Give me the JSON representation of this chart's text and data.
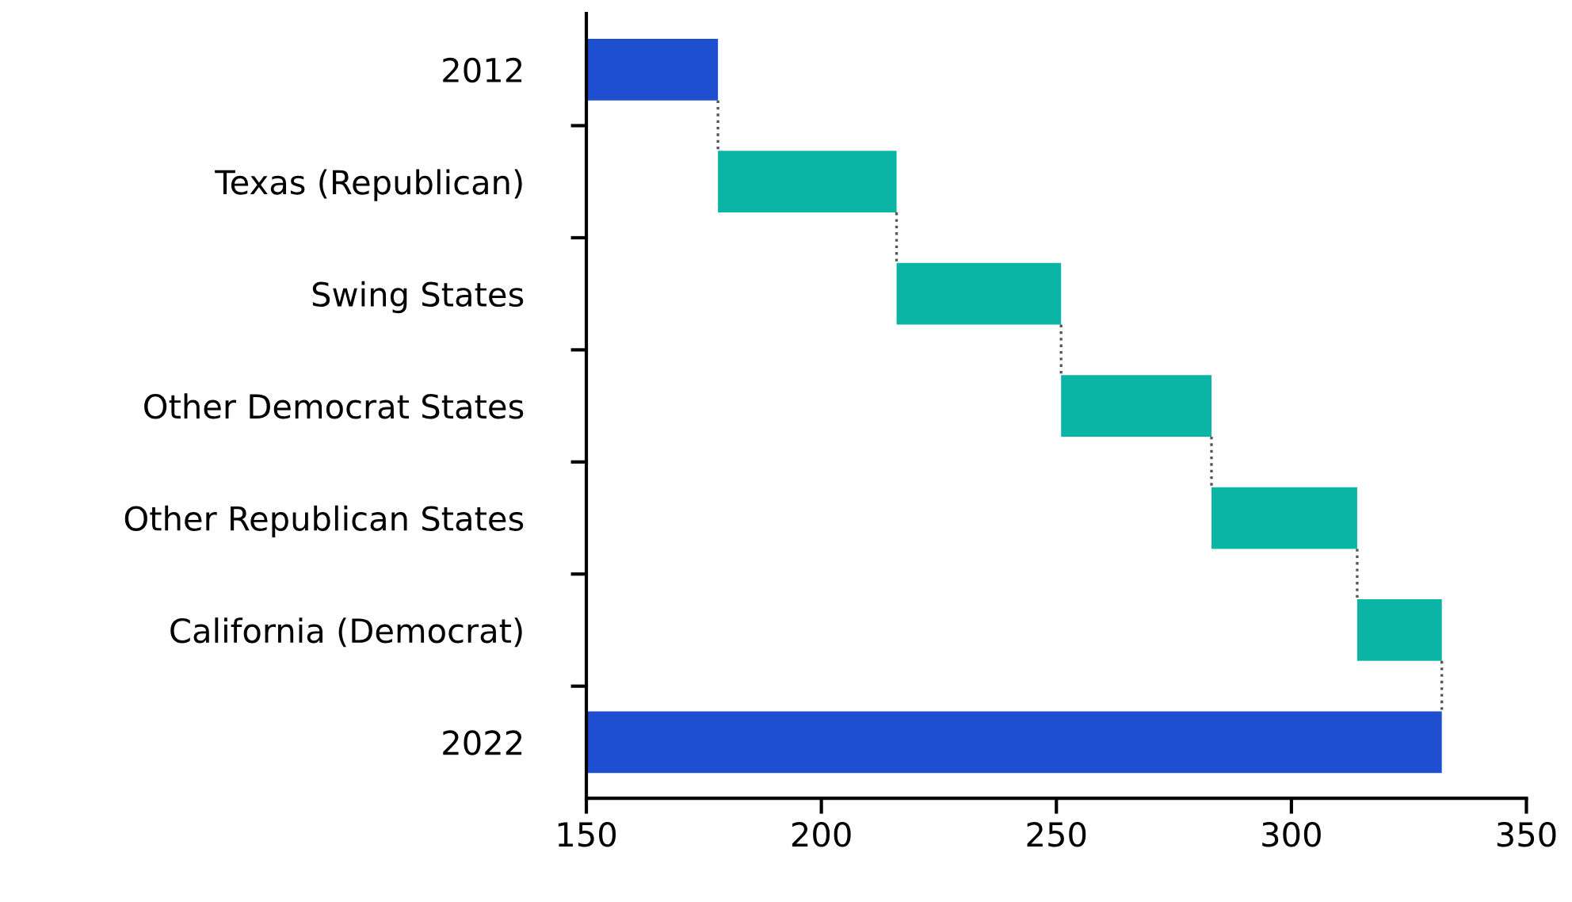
{
  "chart_data": {
    "type": "bar",
    "orientation": "horizontal",
    "categories": [
      "2012",
      "Texas (Republican)",
      "Swing States",
      "Other Democrat States",
      "Other Republican States",
      "California (Democrat)",
      "2022"
    ],
    "values": [
      178,
      38,
      35,
      32,
      31,
      18,
      332
    ],
    "base": [
      0,
      178,
      216,
      251,
      283,
      314,
      0
    ],
    "colors": [
      "#1f4fd1",
      "#0bb5a5",
      "#0bb5a5",
      "#0bb5a5",
      "#0bb5a5",
      "#0bb5a5",
      "#1f4fd1"
    ],
    "xlim": [
      150,
      350
    ],
    "xticks": [
      150,
      200,
      250,
      300,
      350
    ],
    "grid": false,
    "legend": false
  }
}
